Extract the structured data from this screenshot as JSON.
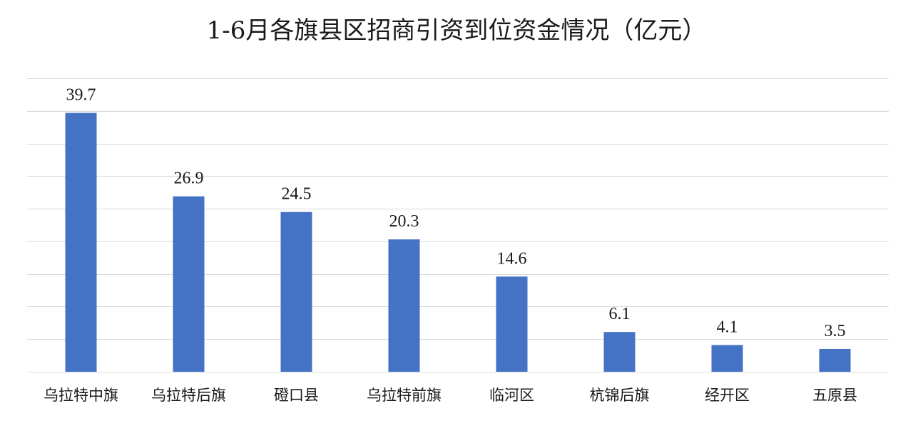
{
  "chart_data": {
    "type": "bar",
    "title": "1-6月各旗县区招商引资到位资金情况（亿元）",
    "categories": [
      "乌拉特中旗",
      "乌拉特后旗",
      "磴口县",
      "乌拉特前旗",
      "临河区",
      "杭锦后旗",
      "经开区",
      "五原县"
    ],
    "values": [
      39.7,
      26.9,
      24.5,
      20.3,
      14.6,
      6.1,
      4.1,
      3.5
    ],
    "value_labels": [
      "39.7",
      "26.9",
      "24.5",
      "20.3",
      "14.6",
      "6.1",
      "4.1",
      "3.5"
    ],
    "ylim": [
      0,
      45
    ],
    "grid": true,
    "xlabel": "",
    "ylabel": "",
    "colors": {
      "bar": "#4472c4",
      "grid": "#d9d9d9",
      "text": "#1a1a1a"
    }
  }
}
